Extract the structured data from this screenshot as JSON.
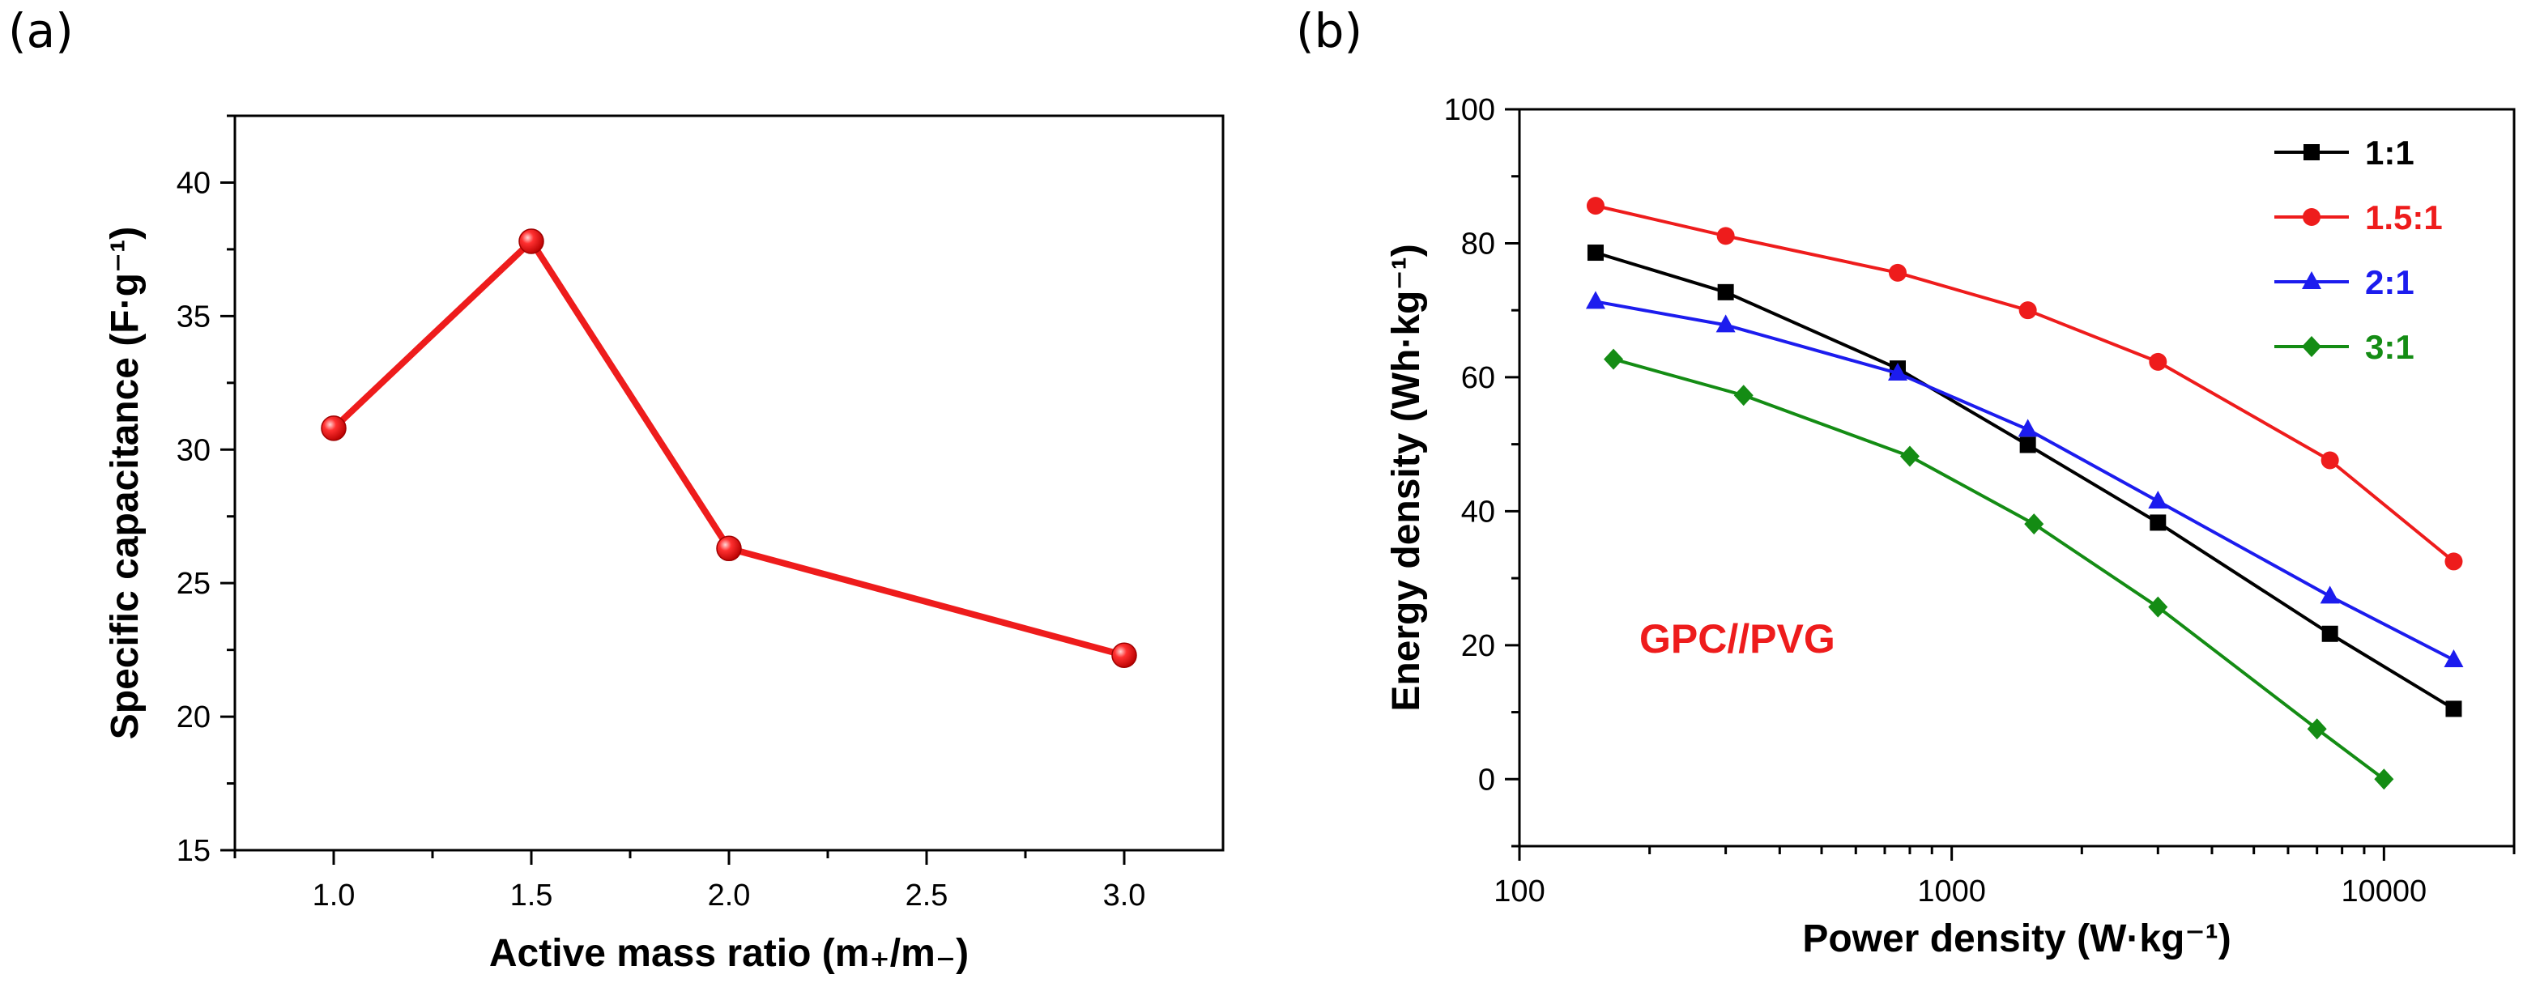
{
  "panel_labels": {
    "a": "(a)",
    "b": "(b)"
  },
  "chart_data": [
    {
      "id": "a",
      "type": "line",
      "x": [
        1.0,
        1.5,
        2.0,
        3.0
      ],
      "values": [
        30.8,
        37.8,
        26.3,
        22.3
      ],
      "series_color": "#ee1c1c",
      "xlabel": "Active mass ratio (m₊/m₋)",
      "ylabel": "Specific capacitance (F·g⁻¹)",
      "xlim": [
        0.75,
        3.25
      ],
      "ylim": [
        15,
        42.5
      ],
      "x_ticks": [
        1.0,
        1.5,
        2.0,
        2.5,
        3.0
      ],
      "x_tick_labels": [
        "1.0",
        "1.5",
        "2.0",
        "2.5",
        "3.0"
      ],
      "y_ticks": [
        15,
        20,
        25,
        30,
        35,
        40
      ],
      "y_tick_labels": [
        "15",
        "20",
        "25",
        "30",
        "35",
        "40"
      ],
      "grid": false
    },
    {
      "id": "b",
      "type": "line",
      "x_scale": "log",
      "xlabel": "Power density (W·kg⁻¹)",
      "ylabel": "Energy density (Wh·kg⁻¹)",
      "xlim": [
        100,
        20000
      ],
      "ylim": [
        -10,
        100
      ],
      "x_ticks": [
        100,
        1000,
        10000
      ],
      "x_tick_labels": [
        "100",
        "1000",
        "10000"
      ],
      "y_ticks": [
        0,
        20,
        40,
        60,
        80,
        100
      ],
      "y_tick_labels": [
        "0",
        "20",
        "40",
        "60",
        "80",
        "100"
      ],
      "grid": false,
      "legend_position": "top-right",
      "annotation": {
        "text": "GPC//PVG",
        "color": "#ee1c1c"
      },
      "series": [
        {
          "name": "1:1",
          "color": "#000000",
          "marker": "square",
          "x": [
            150,
            300,
            750,
            1500,
            3000,
            7500,
            14500
          ],
          "values": [
            78.6,
            72.7,
            61.3,
            49.9,
            38.3,
            21.7,
            10.5
          ]
        },
        {
          "name": "1.5:1",
          "color": "#ee1c1c",
          "marker": "circle",
          "x": [
            150,
            300,
            750,
            1500,
            3000,
            7500,
            14500
          ],
          "values": [
            85.6,
            81.1,
            75.6,
            70.0,
            62.3,
            47.6,
            32.5
          ]
        },
        {
          "name": "2:1",
          "color": "#1c1cee",
          "marker": "triangle",
          "x": [
            150,
            300,
            750,
            1500,
            3000,
            7500,
            14500
          ],
          "values": [
            71.3,
            67.8,
            60.6,
            52.2,
            41.5,
            27.3,
            17.8
          ]
        },
        {
          "name": "3:1",
          "color": "#148c14",
          "marker": "diamond",
          "x": [
            165,
            330,
            800,
            1550,
            3000,
            7000,
            10000
          ],
          "values": [
            62.7,
            57.3,
            48.2,
            38.1,
            25.7,
            7.5,
            0.0
          ]
        }
      ]
    }
  ]
}
